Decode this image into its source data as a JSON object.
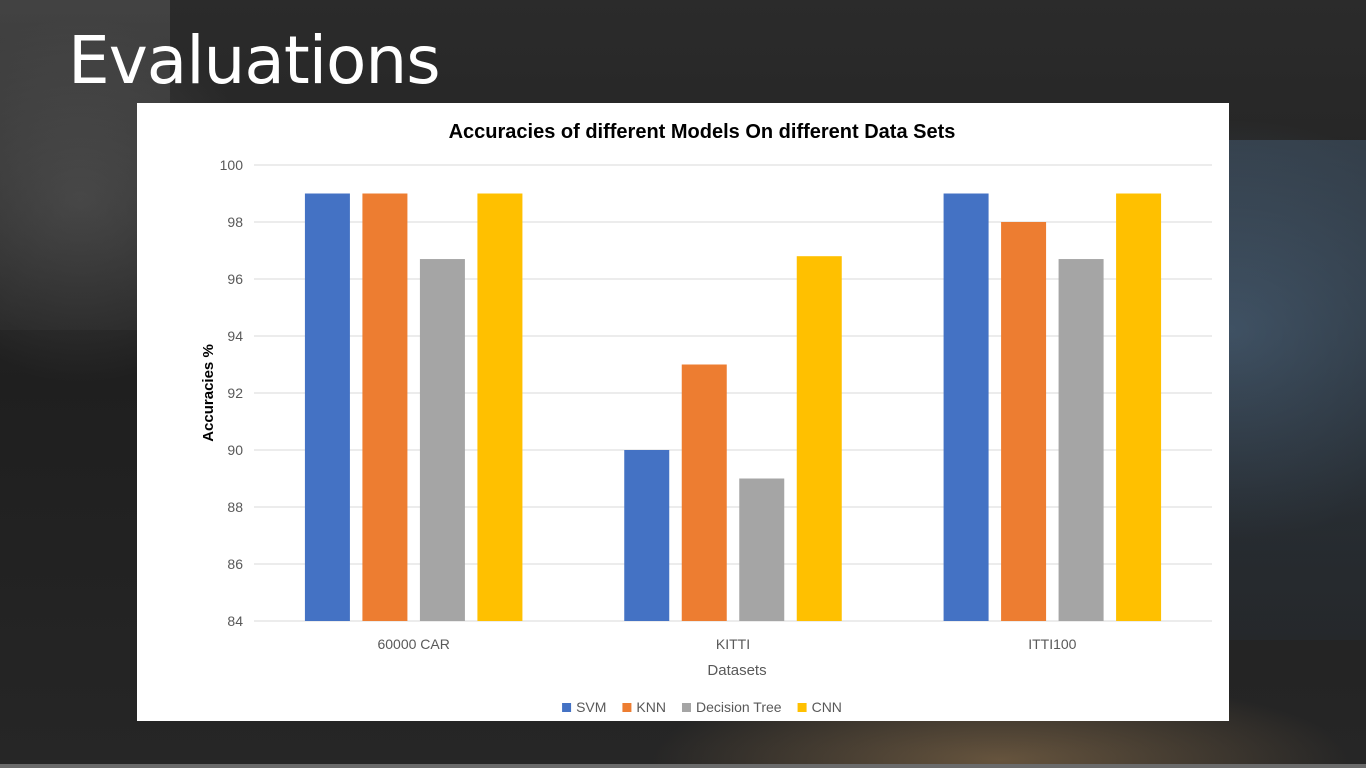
{
  "slide": {
    "title": "Evaluations"
  },
  "chart_data": {
    "type": "bar",
    "title": "Accuracies of different Models On different Data Sets",
    "xlabel": "Datasets",
    "ylabel": "Accuracies %",
    "categories": [
      "60000 CAR",
      "KITTI",
      "ITTI100"
    ],
    "series": [
      {
        "name": "SVM",
        "color": "#4472C4",
        "values": [
          99,
          90,
          99
        ]
      },
      {
        "name": "KNN",
        "color": "#ED7D31",
        "values": [
          99,
          93,
          98
        ]
      },
      {
        "name": "Decision Tree",
        "color": "#A5A5A5",
        "values": [
          96.7,
          89,
          96.7
        ]
      },
      {
        "name": "CNN",
        "color": "#FFC000",
        "values": [
          99,
          96.8,
          99
        ]
      }
    ],
    "ylim": [
      84,
      100
    ],
    "yticks": [
      84,
      86,
      88,
      90,
      92,
      94,
      96,
      98,
      100
    ],
    "grid": true,
    "legend_position": "bottom"
  }
}
